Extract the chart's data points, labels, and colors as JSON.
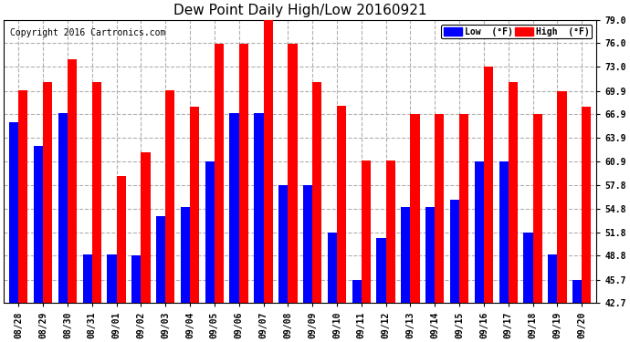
{
  "title": "Dew Point Daily High/Low 20160921",
  "copyright": "Copyright 2016 Cartronics.com",
  "background_color": "#ffffff",
  "plot_bg_color": "#ffffff",
  "grid_color": "#b0b0b0",
  "bar_width": 0.38,
  "ymin": 42.7,
  "ymax": 79.0,
  "yticks": [
    42.7,
    45.7,
    48.8,
    51.8,
    54.8,
    57.8,
    60.9,
    63.9,
    66.9,
    69.9,
    73.0,
    76.0,
    79.0
  ],
  "dates": [
    "08/28",
    "08/29",
    "08/30",
    "08/31",
    "09/01",
    "09/02",
    "09/03",
    "09/04",
    "09/05",
    "09/06",
    "09/07",
    "09/08",
    "09/09",
    "09/10",
    "09/11",
    "09/12",
    "09/13",
    "09/14",
    "09/15",
    "09/16",
    "09/17",
    "09/18",
    "09/19",
    "09/20"
  ],
  "high": [
    70.0,
    71.0,
    73.9,
    71.0,
    59.0,
    62.0,
    70.0,
    67.9,
    75.9,
    75.9,
    79.0,
    75.9,
    71.0,
    68.0,
    61.0,
    61.0,
    66.9,
    66.9,
    66.9,
    73.0,
    71.0,
    66.9,
    69.9,
    67.9
  ],
  "low": [
    65.9,
    62.9,
    67.0,
    49.0,
    49.0,
    48.8,
    53.9,
    55.0,
    60.9,
    67.0,
    67.0,
    57.8,
    57.8,
    51.8,
    45.7,
    51.0,
    55.0,
    55.0,
    56.0,
    60.9,
    60.9,
    51.8,
    49.0,
    45.7
  ],
  "high_color": "#ff0000",
  "low_color": "#0000ff",
  "legend_low_label": "Low  (°F)",
  "legend_high_label": "High  (°F)",
  "title_fontsize": 11,
  "tick_fontsize": 7,
  "copyright_fontsize": 7
}
